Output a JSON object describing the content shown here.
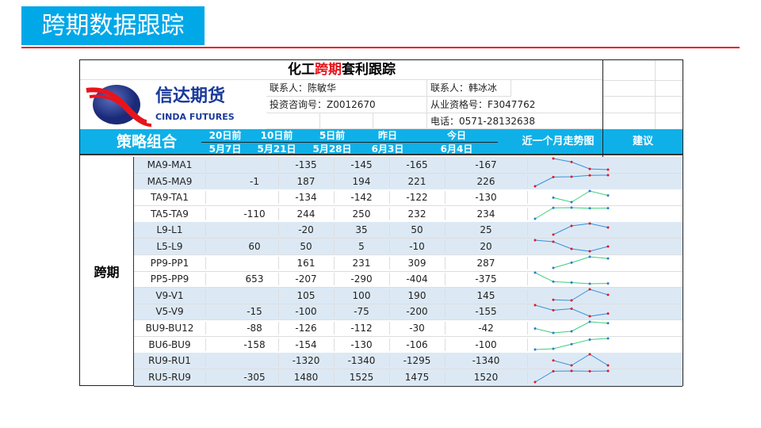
{
  "page_title": "跨期数据跟踪",
  "sheet": {
    "title_prefix": "化工",
    "title_highlight": "跨期",
    "title_suffix": "套利跟踪",
    "logo": {
      "cn": "信达期货",
      "en": "CINDA FUTURES"
    },
    "contacts": {
      "c1": "联系人：陈敏华",
      "c2": "投资咨询号：Z0012670",
      "c3": "联系人：韩冰冰",
      "c4": "从业资格号：F3047762",
      "c5": "电话：0571-28132638"
    },
    "header": {
      "strategy": "策略组合",
      "cols": [
        {
          "top": "20日前",
          "bottom": "5月7日"
        },
        {
          "top": "10日前",
          "bottom": "5月21日"
        },
        {
          "top": "5日前",
          "bottom": "5月28日"
        },
        {
          "top": "昨日",
          "bottom": "6月3日"
        },
        {
          "top": "今日",
          "bottom": "6月4日"
        }
      ],
      "trend": "近一个月走势图",
      "advice": "建议"
    },
    "category": "跨期",
    "colors": {
      "header_bg": "#0fb0e8",
      "row_blue": "#dce9f5",
      "accent_red": "#e8141b"
    },
    "groups": [
      {
        "shaded": true,
        "line": "#3a8fd8",
        "dot": "#e8141b",
        "rows": [
          {
            "name": "MA9-MA1",
            "values": [
              null,
              -135,
              -145,
              -165,
              -167
            ]
          },
          {
            "name": "MA5-MA9",
            "values": [
              -1,
              187,
              194,
              221,
              226
            ]
          }
        ]
      },
      {
        "shaded": false,
        "line": "#3ccf7a",
        "dot": "#2a7bd8",
        "rows": [
          {
            "name": "TA9-TA1",
            "values": [
              null,
              -134,
              -142,
              -122,
              -130
            ]
          },
          {
            "name": "TA5-TA9",
            "values": [
              -110,
              244,
              250,
              232,
              234
            ]
          }
        ]
      },
      {
        "shaded": true,
        "line": "#3a8fd8",
        "dot": "#e8141b",
        "rows": [
          {
            "name": "L9-L1",
            "values": [
              null,
              -20,
              35,
              50,
              25
            ]
          },
          {
            "name": "L5-L9",
            "values": [
              60,
              50,
              5,
              -10,
              20
            ]
          }
        ]
      },
      {
        "shaded": false,
        "line": "#3ccf7a",
        "dot": "#2a7bd8",
        "rows": [
          {
            "name": "PP9-PP1",
            "values": [
              null,
              161,
              231,
              309,
              287
            ]
          },
          {
            "name": "PP5-PP9",
            "values": [
              653,
              -207,
              -290,
              -404,
              -375
            ]
          }
        ]
      },
      {
        "shaded": true,
        "line": "#3a8fd8",
        "dot": "#e8141b",
        "rows": [
          {
            "name": "V9-V1",
            "values": [
              null,
              105,
              100,
              190,
              145
            ]
          },
          {
            "name": "V5-V9",
            "values": [
              -15,
              -100,
              -75,
              -200,
              -155
            ]
          }
        ]
      },
      {
        "shaded": false,
        "line": "#3ccf7a",
        "dot": "#2a7bd8",
        "rows": [
          {
            "name": "BU9-BU12",
            "values": [
              -88,
              -126,
              -112,
              -30,
              -42
            ]
          },
          {
            "name": "BU6-BU9",
            "values": [
              -158,
              -154,
              -130,
              -106,
              -100
            ]
          }
        ]
      },
      {
        "shaded": true,
        "line": "#3a8fd8",
        "dot": "#e8141b",
        "rows": [
          {
            "name": "RU9-RU1",
            "values": [
              null,
              -1320,
              -1340,
              -1295,
              -1340
            ]
          },
          {
            "name": "RU5-RU9",
            "values": [
              -305,
              1480,
              1525,
              1475,
              1520
            ]
          }
        ]
      }
    ]
  }
}
